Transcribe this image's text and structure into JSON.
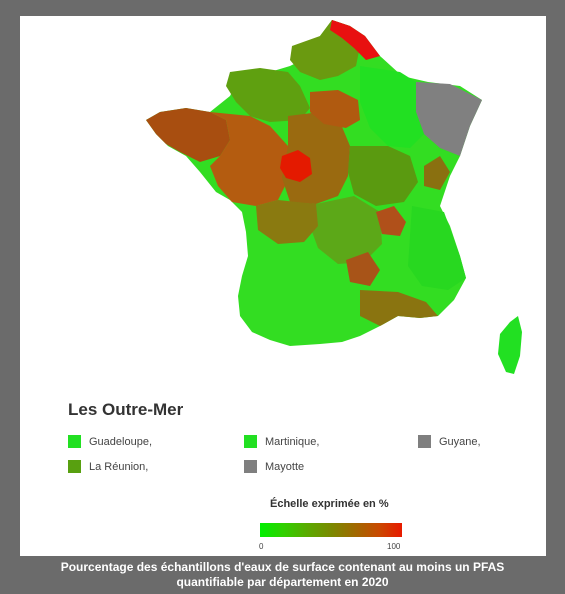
{
  "colors": {
    "frame": "#6b6b6b",
    "panel": "#ffffff",
    "scale_low": "#00ee00",
    "scale_mid": "#6b8e00",
    "scale_high": "#e00000",
    "no_data": "#7f7f7f"
  },
  "overseas": {
    "title": "Les Outre-Mer",
    "items": [
      {
        "label": "Guadeloupe,",
        "color": "#22e022"
      },
      {
        "label": "Martinique,",
        "color": "#22e022"
      },
      {
        "label": "Guyane,",
        "color": "#7f7f7f"
      },
      {
        "label": "La Réunion,",
        "color": "#58a010"
      },
      {
        "label": "Mayotte",
        "color": "#7f7f7f"
      }
    ]
  },
  "scale": {
    "title": "Échelle exprimée en %",
    "min_label": "0",
    "max_label": "100",
    "stops": [
      "#00f000",
      "#30d000",
      "#5aaa00",
      "#7a8a00",
      "#a06a00",
      "#c84a00",
      "#e81a00"
    ]
  },
  "caption": {
    "line1": "Pourcentage des échantillons d'eaux de surface contenant au moins un PFAS",
    "line2": "quantifiable par département en 2020"
  },
  "map": {
    "regions": [
      {
        "name": "north-border",
        "pct": 95
      },
      {
        "name": "picardie",
        "pct": 40
      },
      {
        "name": "normandie-west",
        "pct": 35
      },
      {
        "name": "bretagne",
        "pct": 60
      },
      {
        "name": "pays-de-la-loire",
        "pct": 65
      },
      {
        "name": "centre",
        "pct": 55
      },
      {
        "name": "loir-et-cher",
        "pct": 90
      },
      {
        "name": "ile-de-france",
        "pct": 80
      },
      {
        "name": "grand-est-gray",
        "pct": null
      },
      {
        "name": "southwest",
        "pct": 5
      },
      {
        "name": "massif-central",
        "pct": 25
      },
      {
        "name": "rhone-alpes",
        "pct": 20
      },
      {
        "name": "paca",
        "pct": 30
      },
      {
        "name": "corse",
        "pct": 5
      }
    ]
  }
}
